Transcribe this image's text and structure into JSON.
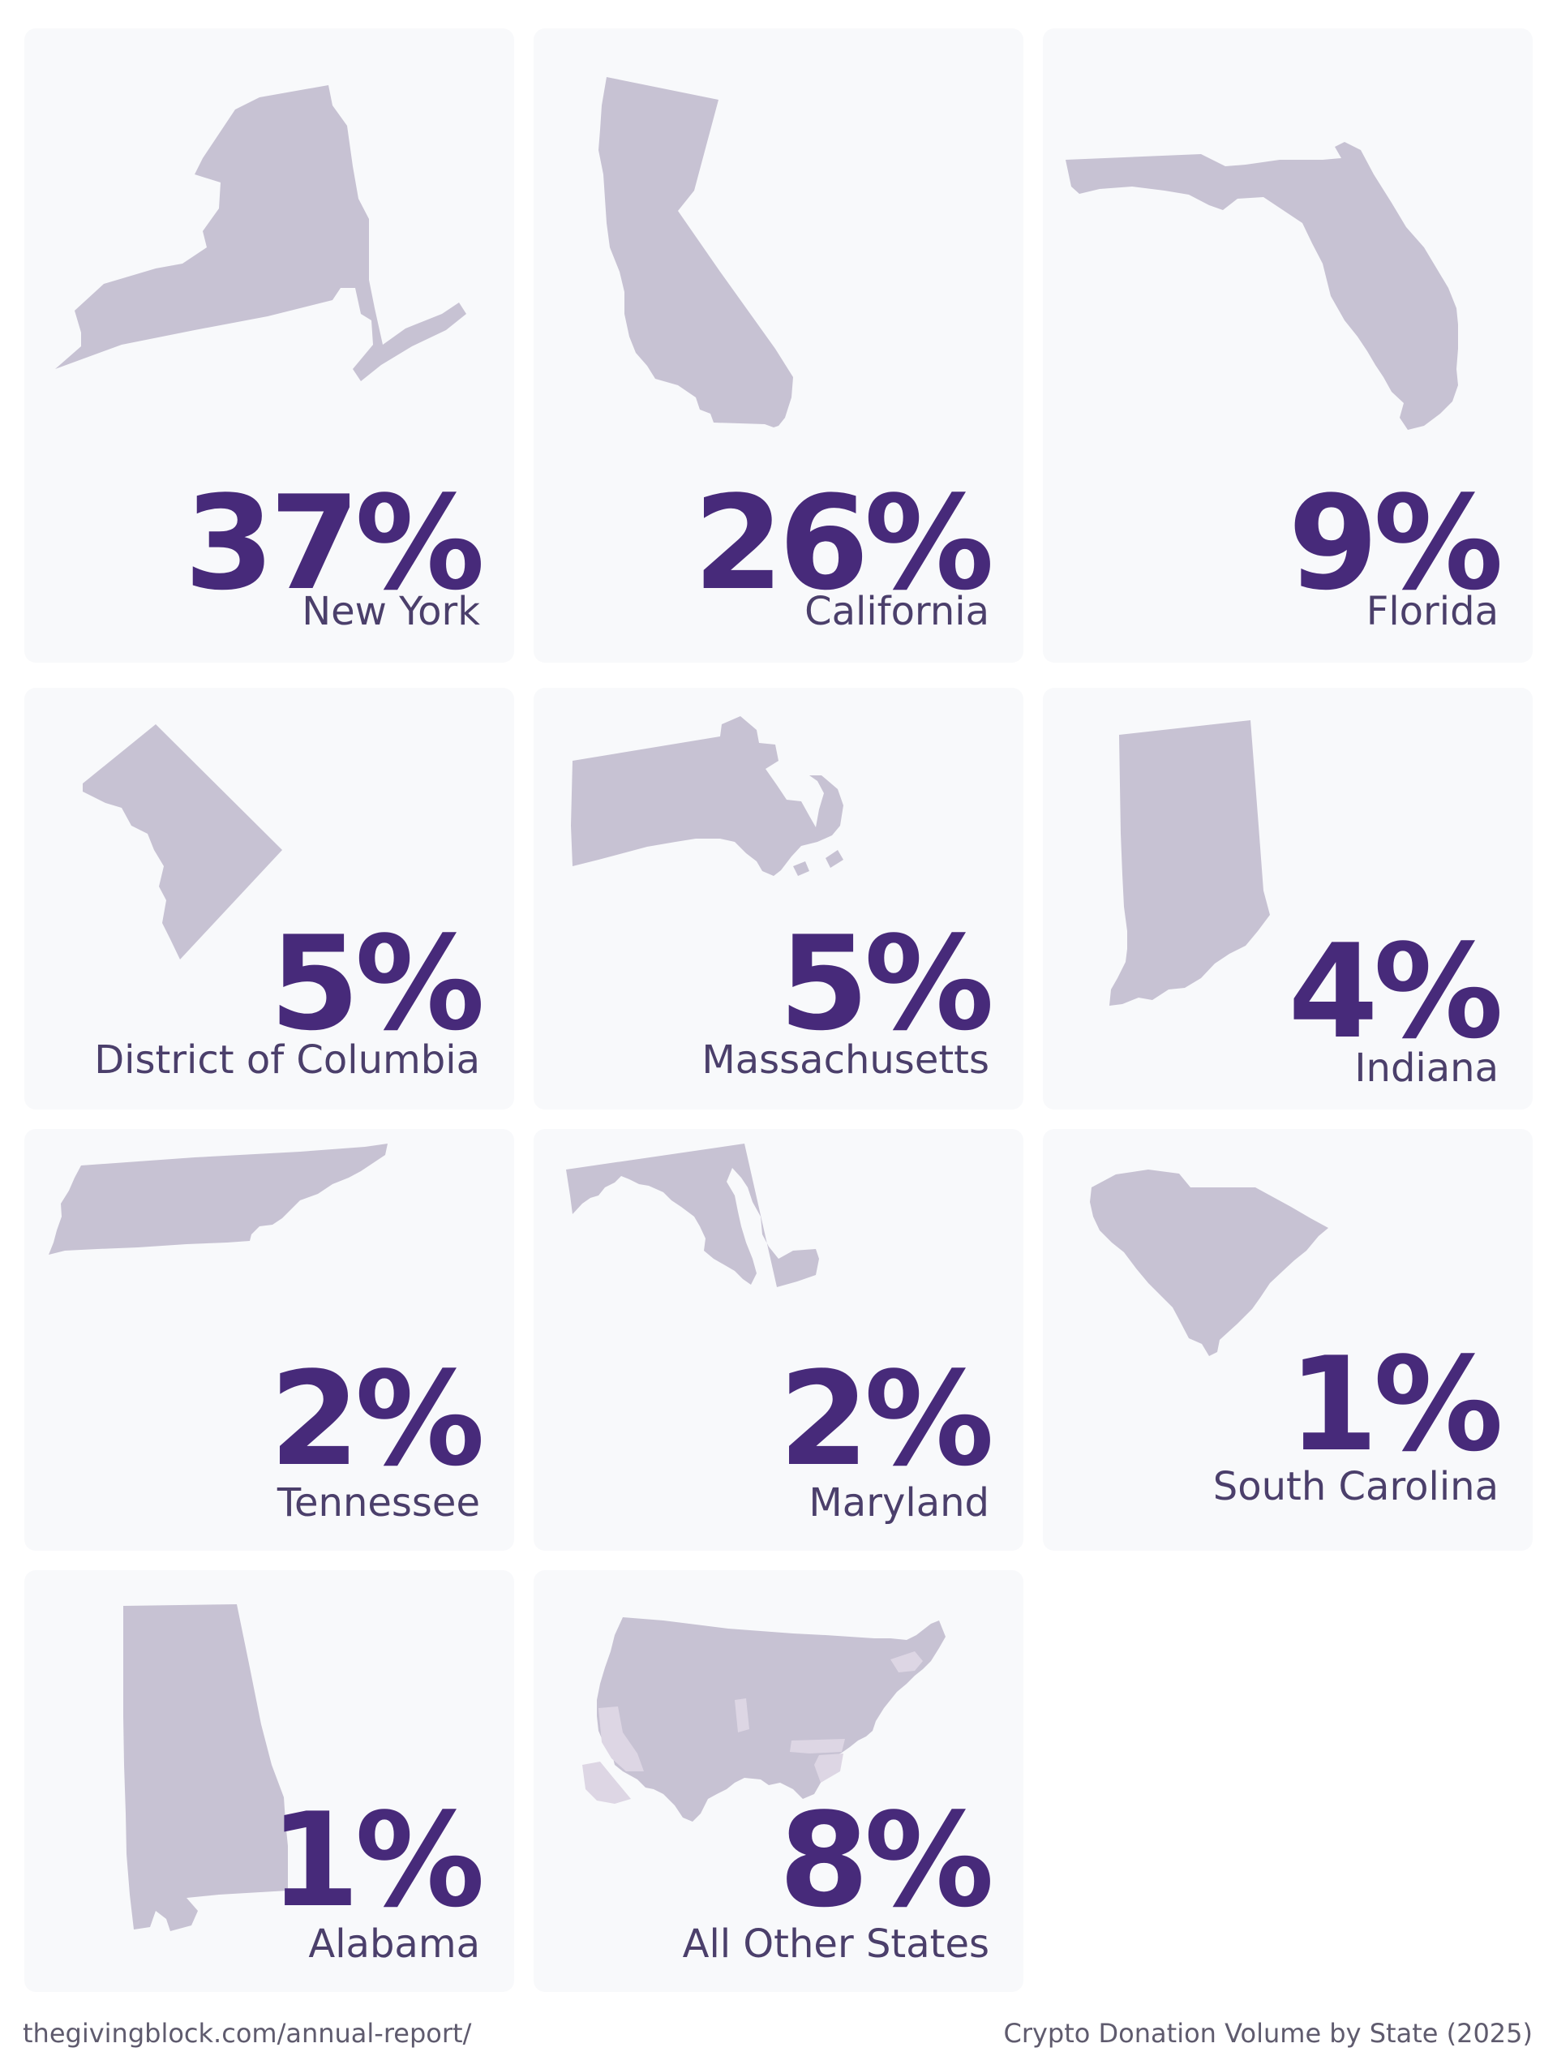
{
  "chart_data": {
    "type": "table",
    "title": "Crypto Donation Volume by State (2025)",
    "categories": [
      "New York",
      "California",
      "Florida",
      "District of Columbia",
      "Massachusetts",
      "Indiana",
      "Tennessee",
      "Maryland",
      "South Carolina",
      "Alabama",
      "All Other States"
    ],
    "series": [
      {
        "values": [
          37,
          26,
          9,
          5,
          5,
          4,
          2,
          2,
          1,
          1,
          8
        ]
      }
    ],
    "value_labels": [
      "37%",
      "26%",
      "9%",
      "5%",
      "5%",
      "4%",
      "2%",
      "2%",
      "1%",
      "1%",
      "8%"
    ],
    "unit": "%"
  },
  "cards": [
    {
      "state": "New York",
      "pct": "37%",
      "icon": "new-york-map-icon"
    },
    {
      "state": "California",
      "pct": "26%",
      "icon": "california-map-icon"
    },
    {
      "state": "Florida",
      "pct": "9%",
      "icon": "florida-map-icon"
    },
    {
      "state": "District of Columbia",
      "pct": "5%",
      "icon": "district-of-columbia-map-icon"
    },
    {
      "state": "Massachusetts",
      "pct": "5%",
      "icon": "massachusetts-map-icon"
    },
    {
      "state": "Indiana",
      "pct": "4%",
      "icon": "indiana-map-icon"
    },
    {
      "state": "Tennessee",
      "pct": "2%",
      "icon": "tennessee-map-icon"
    },
    {
      "state": "Maryland",
      "pct": "2%",
      "icon": "maryland-map-icon"
    },
    {
      "state": "South Carolina",
      "pct": "1%",
      "icon": "south-carolina-map-icon"
    },
    {
      "state": "Alabama",
      "pct": "1%",
      "icon": "alabama-map-icon"
    },
    {
      "state": "All Other States",
      "pct": "8%",
      "icon": "usa-map-icon"
    }
  ],
  "footer": {
    "url": "thegivingblock.com/annual-report/",
    "caption": "Crypto Donation Volume by State (2025)"
  },
  "colors": {
    "card_background": "#f8f9fb",
    "shape_fill": "#c7c2d3",
    "percent_text": "#472a7a",
    "label_text": "#4b3f6b",
    "footer_text": "#5f5b6e"
  }
}
